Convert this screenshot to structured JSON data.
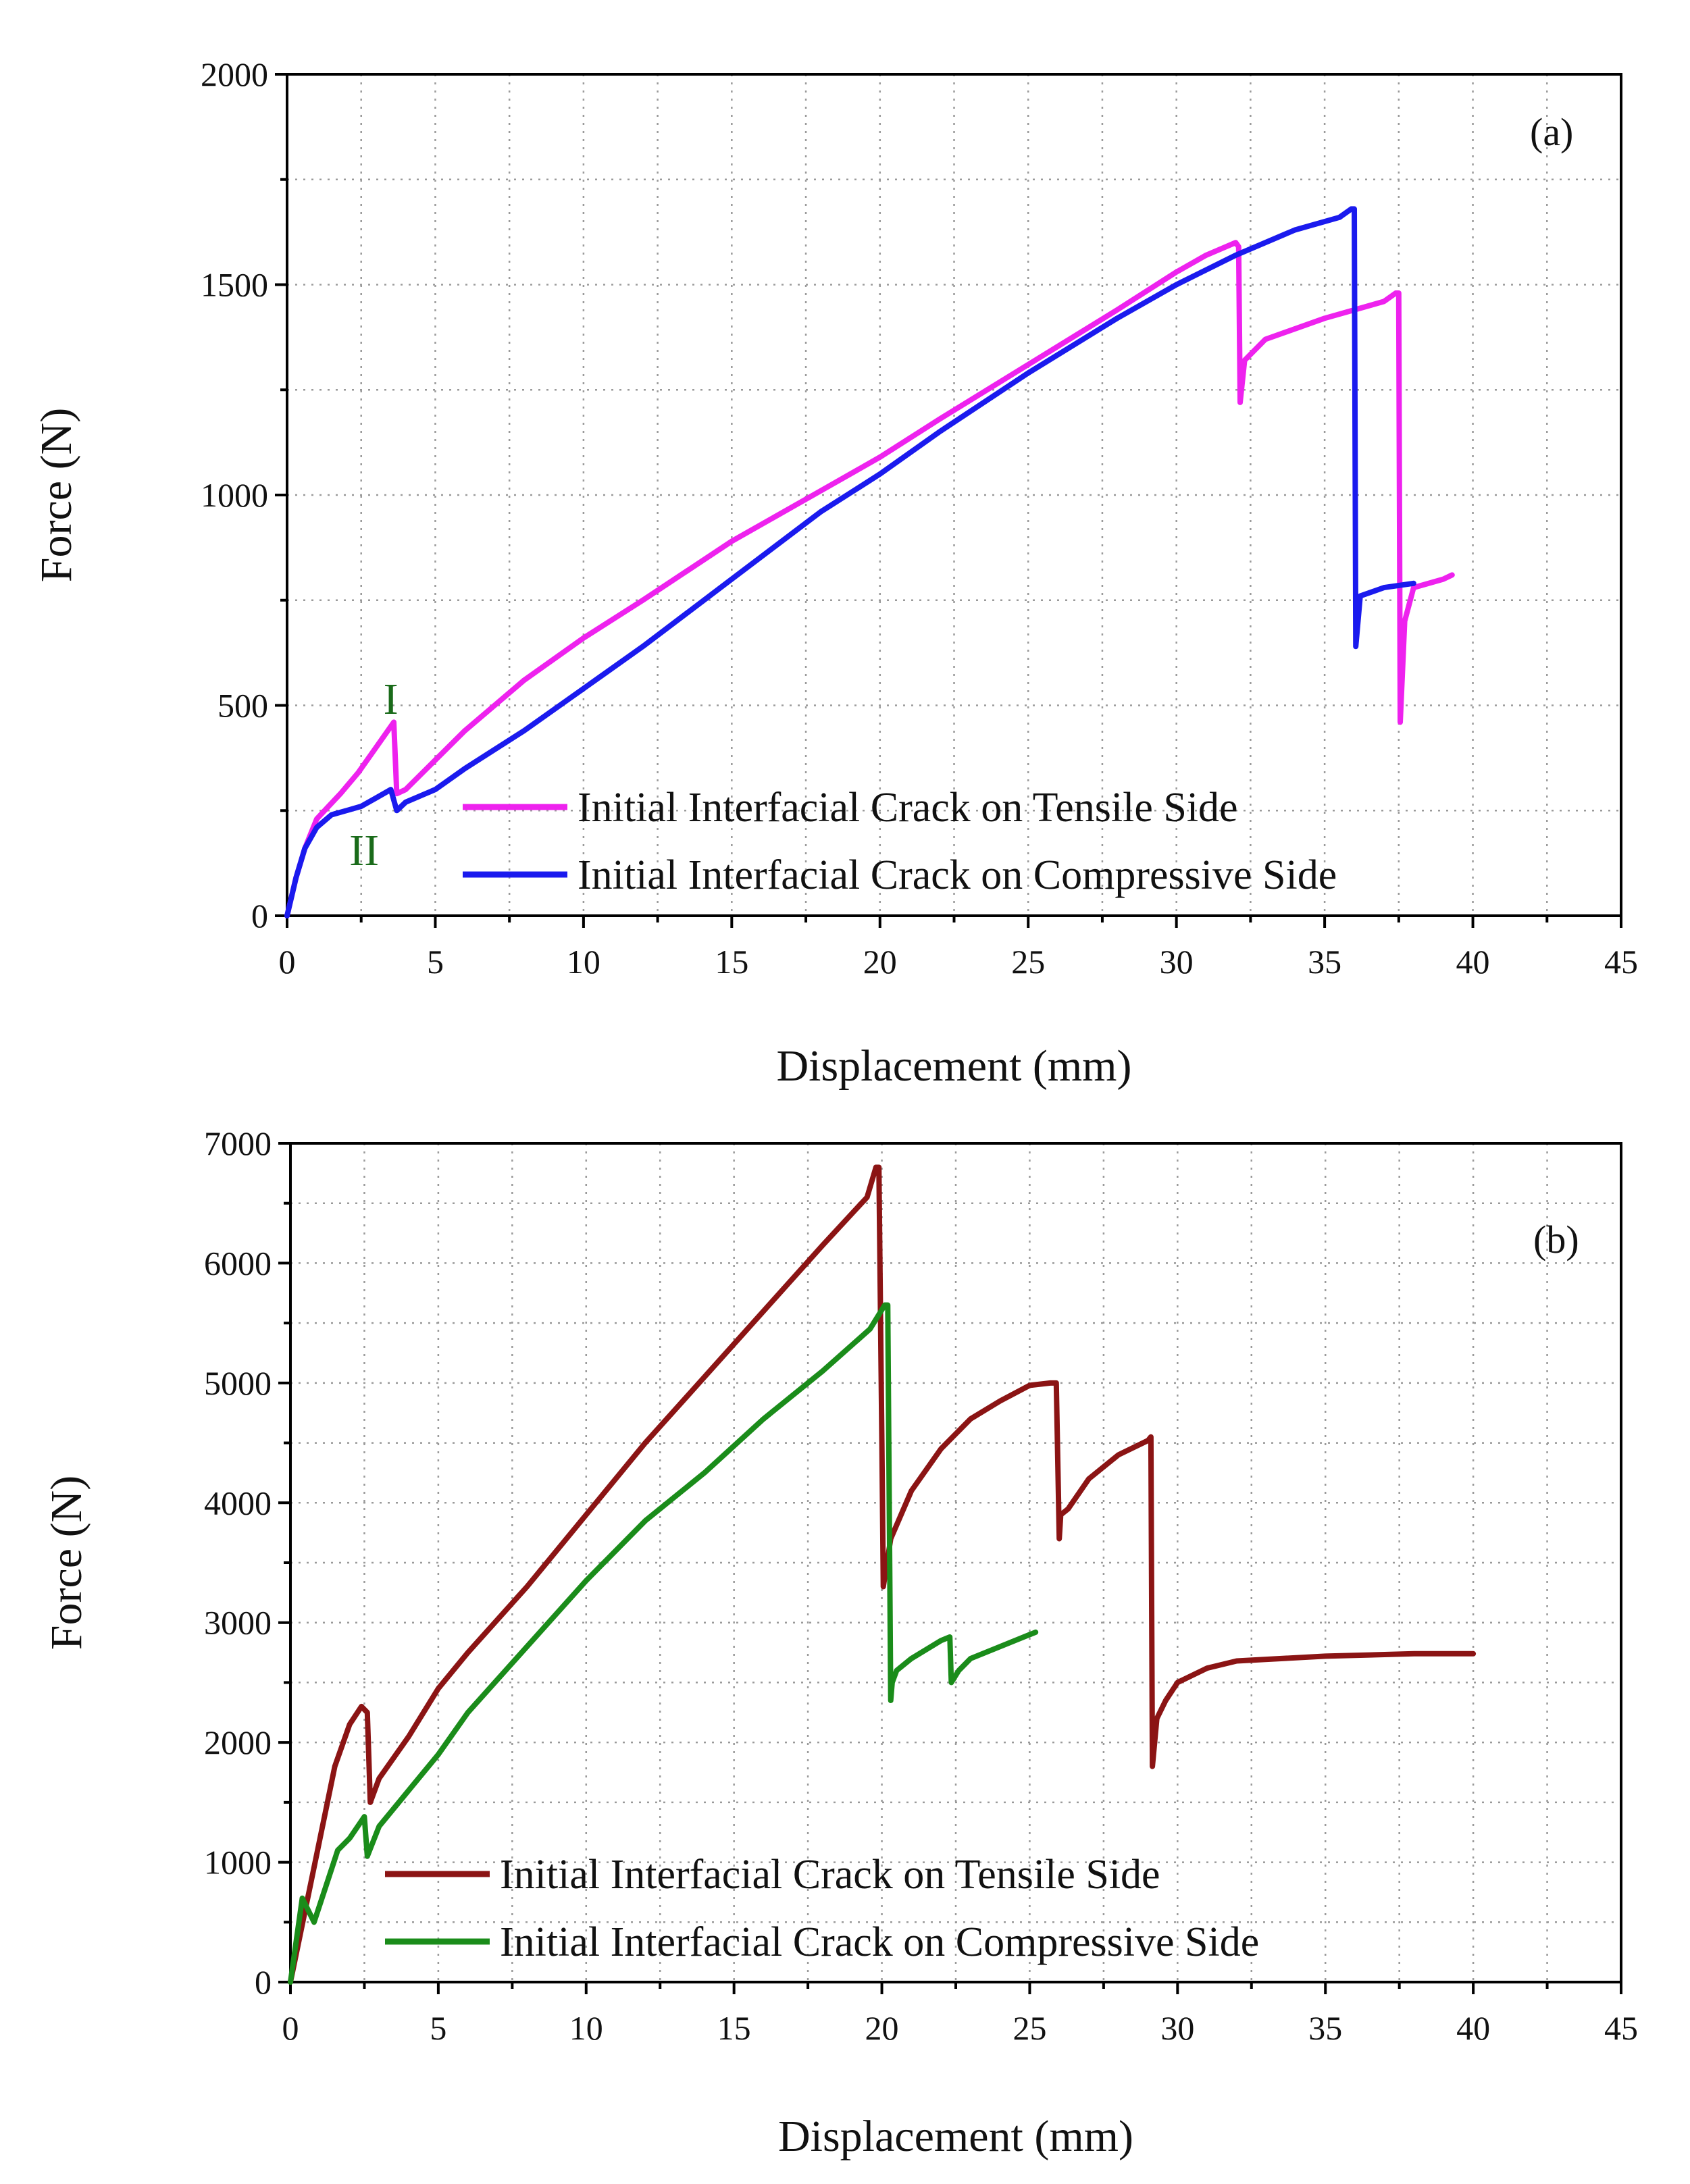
{
  "chart_data": [
    {
      "type": "line",
      "panel_label": "(a)",
      "xlabel": "Displacement (mm)",
      "ylabel": "Force (N)",
      "xlim": [
        0,
        45
      ],
      "ylim": [
        0,
        2000
      ],
      "xticks": [
        0,
        5,
        10,
        15,
        20,
        25,
        30,
        35,
        40,
        45
      ],
      "yticks": [
        0,
        500,
        1000,
        1500,
        2000
      ],
      "grid": true,
      "legend_position": "bottom-right",
      "annotations": [
        {
          "text": "I",
          "x": 3.5,
          "y": 480,
          "color": "#1a6b1a"
        },
        {
          "text": "II",
          "x": 2.6,
          "y": 120,
          "color": "#1a6b1a"
        }
      ],
      "series": [
        {
          "name": "Initial Interfacial Crack on Tensile Side",
          "color": "#ee22ee",
          "x": [
            0,
            0.3,
            0.6,
            1.0,
            1.4,
            1.8,
            2.4,
            3.0,
            3.5,
            3.6,
            3.7,
            4.0,
            5,
            6,
            8,
            10,
            12,
            15,
            18,
            20,
            22,
            25,
            28,
            30,
            31,
            32,
            32.1,
            32.15,
            32.3,
            33,
            35,
            37,
            37.4,
            37.5,
            37.55,
            37.7,
            38,
            39,
            39.3
          ],
          "y": [
            0,
            90,
            160,
            230,
            260,
            290,
            340,
            400,
            450,
            460,
            290,
            300,
            370,
            440,
            560,
            660,
            750,
            890,
            1010,
            1090,
            1180,
            1310,
            1440,
            1530,
            1570,
            1600,
            1590,
            1220,
            1320,
            1370,
            1420,
            1460,
            1480,
            1480,
            460,
            700,
            780,
            800,
            810
          ]
        },
        {
          "name": "Initial Interfacial Crack on Compressive Side",
          "color": "#1a1aee",
          "x": [
            0,
            0.3,
            0.6,
            1.0,
            1.5,
            2.0,
            2.5,
            3.0,
            3.5,
            3.7,
            4.0,
            5,
            6,
            8,
            10,
            12,
            15,
            18,
            20,
            22,
            25,
            28,
            30,
            32,
            34,
            35.5,
            35.9,
            36.0,
            36.05,
            36.2,
            37,
            38
          ],
          "y": [
            0,
            90,
            160,
            210,
            240,
            250,
            260,
            280,
            300,
            250,
            270,
            300,
            350,
            440,
            540,
            640,
            800,
            960,
            1050,
            1150,
            1290,
            1420,
            1500,
            1570,
            1630,
            1660,
            1680,
            1680,
            640,
            760,
            780,
            790
          ]
        }
      ]
    },
    {
      "type": "line",
      "panel_label": "(b)",
      "xlabel": "Displacement (mm)",
      "ylabel": "Force (N)",
      "xlim": [
        0,
        45
      ],
      "ylim": [
        0,
        7000
      ],
      "xticks": [
        0,
        5,
        10,
        15,
        20,
        25,
        30,
        35,
        40,
        45
      ],
      "yticks": [
        0,
        1000,
        2000,
        3000,
        4000,
        5000,
        6000,
        7000
      ],
      "grid": true,
      "legend_position": "bottom-right",
      "series": [
        {
          "name": "Initial Interfacial Crack on Tensile Side",
          "color": "#8b1414",
          "x": [
            0,
            0.5,
            1.0,
            1.5,
            2.0,
            2.4,
            2.6,
            2.7,
            3.0,
            4,
            5,
            6,
            8,
            10,
            12,
            14,
            16,
            18,
            19.5,
            19.8,
            19.9,
            20.0,
            20.05,
            20.3,
            21,
            22,
            23,
            24,
            25,
            25.7,
            25.9,
            26.0,
            26.05,
            26.3,
            27,
            28,
            29,
            29.1,
            29.15,
            29.3,
            29.6,
            30,
            31,
            32,
            35,
            38,
            40
          ],
          "y": [
            0,
            600,
            1200,
            1800,
            2150,
            2300,
            2250,
            1500,
            1700,
            2050,
            2450,
            2750,
            3300,
            3900,
            4500,
            5050,
            5600,
            6150,
            6550,
            6800,
            6800,
            4500,
            3300,
            3700,
            4100,
            4450,
            4700,
            4850,
            4980,
            5000,
            5000,
            3700,
            3900,
            3950,
            4200,
            4400,
            4520,
            4550,
            1800,
            2200,
            2350,
            2500,
            2620,
            2680,
            2720,
            2740,
            2740
          ]
        },
        {
          "name": "Initial Interfacial Crack on Compressive Side",
          "color": "#1a8c1a",
          "x": [
            0,
            0.4,
            0.8,
            1.2,
            1.6,
            2.0,
            2.5,
            2.6,
            3.0,
            4,
            5,
            6,
            8,
            10,
            12,
            14,
            16,
            18,
            19.6,
            20.1,
            20.2,
            20.3,
            20.35,
            20.5,
            21,
            22,
            22.3,
            22.35,
            22.6,
            23,
            24,
            25.2
          ],
          "y": [
            0,
            700,
            500,
            800,
            1100,
            1200,
            1380,
            1050,
            1300,
            1600,
            1900,
            2250,
            2800,
            3350,
            3850,
            4250,
            4700,
            5100,
            5450,
            5650,
            5650,
            2350,
            2500,
            2600,
            2700,
            2850,
            2880,
            2500,
            2600,
            2700,
            2800,
            2920
          ]
        }
      ]
    }
  ]
}
